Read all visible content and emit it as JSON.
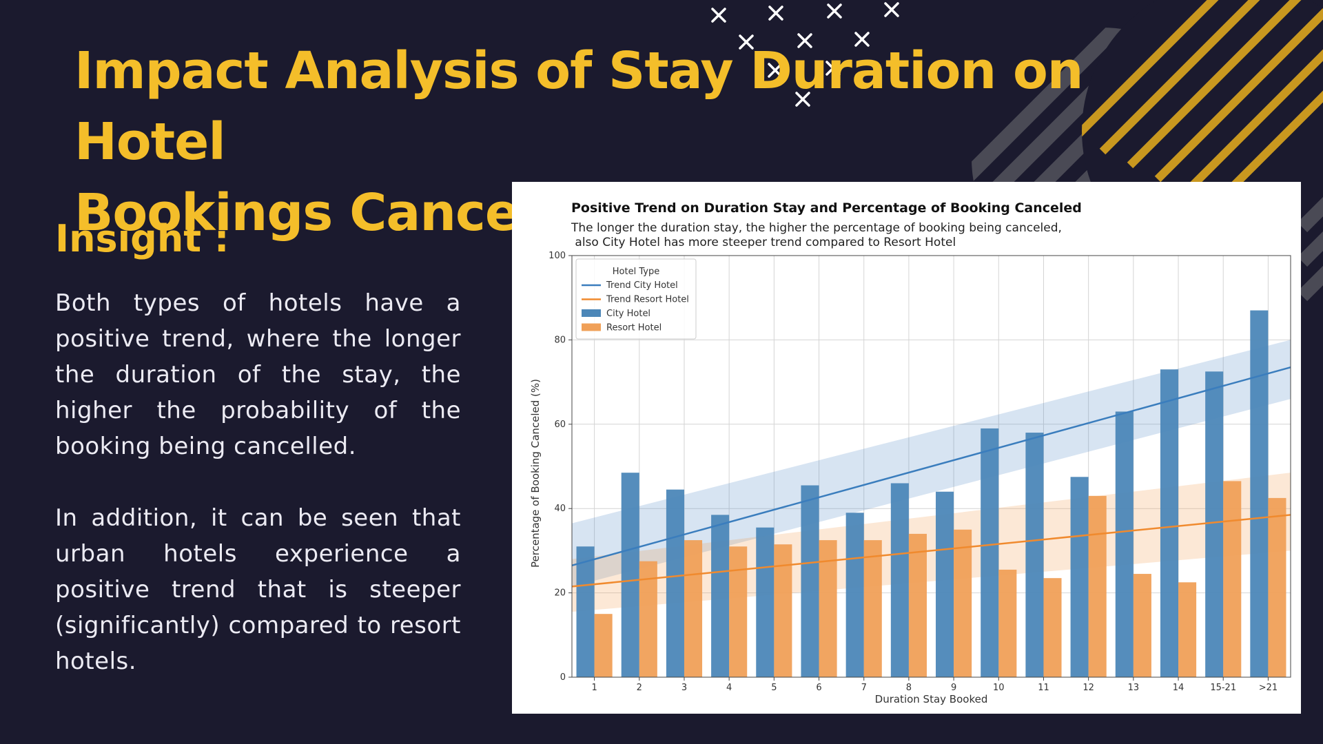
{
  "slide": {
    "title_line1": "Impact Analysis of Stay Duration on Hotel",
    "title_line2": "Bookings Cancellation Rates",
    "insight_heading": "Insight :",
    "paragraph1": "Both types of hotels have a positive trend, where the longer the duration of the stay, the higher the probability of the booking being cancelled.",
    "paragraph2": "In addition, it can be seen that urban hotels experience a positive trend that is steeper (significantly) compared to resort hotels.",
    "colors": {
      "background": "#1b1a2e",
      "accent": "#f4be2a",
      "text": "#ecebf3",
      "deco_gray": "#4a4a55",
      "deco_gold": "#c9981f"
    },
    "decor_icons": "x-marks-icon"
  },
  "chart_data": {
    "type": "bar",
    "title": "Positive Trend on Duration Stay and Percentage of Booking Canceled",
    "subtitle_line1": "The longer the duration stay, the higher the percentage of booking being canceled,",
    "subtitle_line2": " also City Hotel has more steeper trend compared to Resort Hotel",
    "xlabel": "Duration Stay Booked",
    "ylabel": "Percentage of Booking Canceled (%)",
    "ylim": [
      0,
      100
    ],
    "yticks": [
      0,
      20,
      40,
      60,
      80,
      100
    ],
    "grid": true,
    "categories": [
      "1",
      "2",
      "3",
      "4",
      "5",
      "6",
      "7",
      "8",
      "9",
      "10",
      "11",
      "12",
      "13",
      "14",
      "15-21",
      ">21"
    ],
    "series": [
      {
        "name": "City Hotel",
        "color": "#4c87b8",
        "values": [
          31,
          48.5,
          44.5,
          38.5,
          35.5,
          45.5,
          39,
          46,
          44,
          59,
          58,
          47.5,
          63,
          73,
          72.5,
          87
        ]
      },
      {
        "name": "Resort Hotel",
        "color": "#f0a058",
        "values": [
          15,
          27.5,
          32.5,
          31,
          31.5,
          32.5,
          32.5,
          34,
          35,
          25.5,
          23.5,
          43,
          24.5,
          22.5,
          46.5,
          42.5
        ]
      }
    ],
    "trends": [
      {
        "name": "Trend City Hotel",
        "color": "#3a7dbd",
        "start": 26.5,
        "end": 73.5,
        "band_start": [
          21.5,
          36.5
        ],
        "band_end": [
          66,
          80
        ]
      },
      {
        "name": "Trend Resort Hotel",
        "color": "#f08a2e",
        "start": 21.5,
        "end": 38.5,
        "band_start": [
          15.5,
          28
        ],
        "band_end": [
          30,
          48.5
        ]
      }
    ],
    "legend": {
      "title": "Hotel Type",
      "placement": "top-left",
      "entries": [
        "Trend City Hotel",
        "Trend Resort Hotel",
        "City Hotel",
        "Resort Hotel"
      ]
    }
  }
}
